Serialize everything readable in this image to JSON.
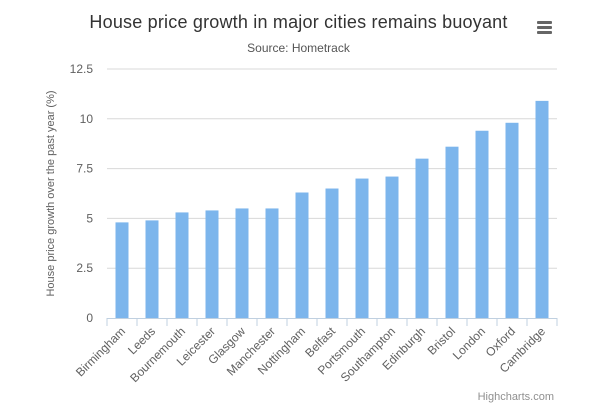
{
  "title": "House price growth in major cities remains buoyant",
  "subtitle": "Source: Hometrack",
  "credits": "Highcharts.com",
  "menu_icon": "hamburger-menu-icon",
  "colors": {
    "bar": "#7cb5ec",
    "grid": "#d8d8d8",
    "axis": "#c0d0e0",
    "text": "#606060"
  },
  "chart_data": {
    "type": "bar",
    "title": "House price growth in major cities remains buoyant",
    "subtitle": "Source: Hometrack",
    "xlabel": "",
    "ylabel": "House price growth over the past year (%)",
    "ylim": [
      0,
      12.5
    ],
    "yticks": [
      "0",
      "2.5",
      "5",
      "7.5",
      "10",
      "12.5"
    ],
    "grid": true,
    "legend": "none",
    "categories": [
      "Birmingham",
      "Leeds",
      "Bournemouth",
      "Leicester",
      "Glasgow",
      "Manchester",
      "Nottingham",
      "Belfast",
      "Portsmouth",
      "Southampton",
      "Edinburgh",
      "Bristol",
      "London",
      "Oxford",
      "Cambridge"
    ],
    "values": [
      4.8,
      4.9,
      5.3,
      5.4,
      5.5,
      5.5,
      6.3,
      6.5,
      7.0,
      7.1,
      8.0,
      8.6,
      9.4,
      9.8,
      10.9
    ]
  }
}
